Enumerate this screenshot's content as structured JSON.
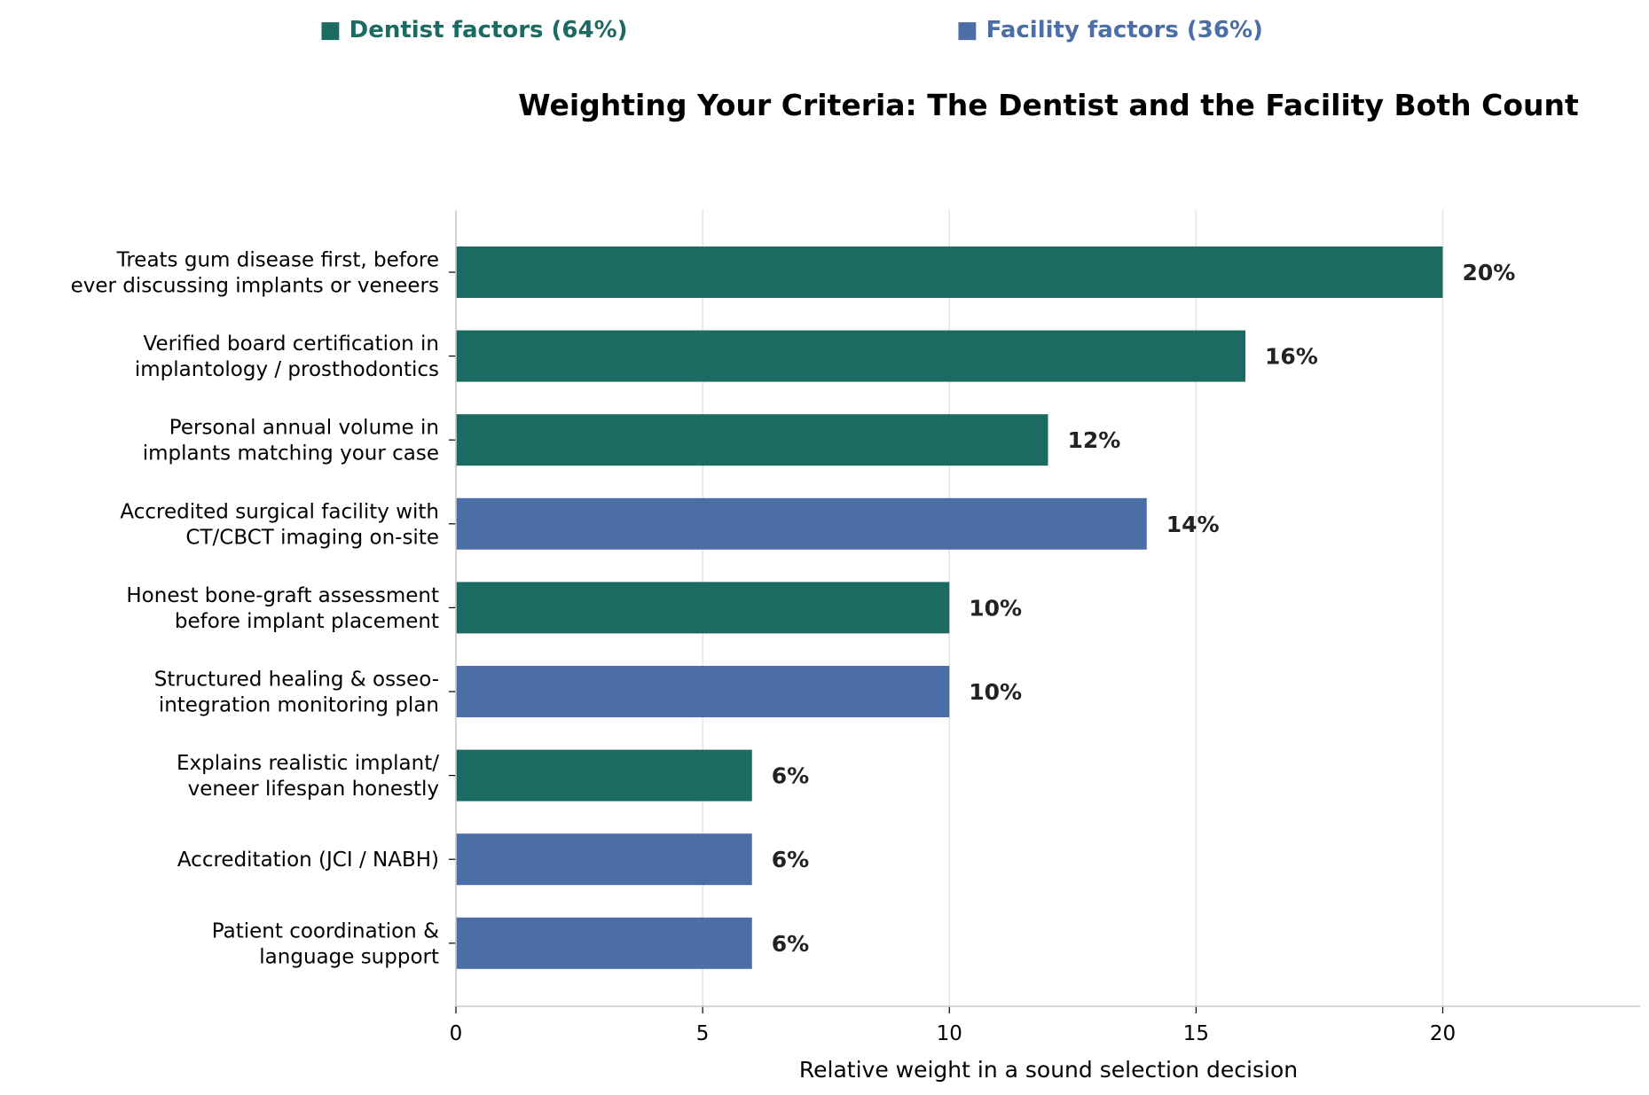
{
  "chart_data": {
    "type": "bar",
    "orientation": "horizontal",
    "title": "Weighting Your Criteria: The Dentist and the Facility Both Count",
    "xlabel": "Relative weight in a sound selection decision",
    "ylabel": "",
    "xlim": [
      0,
      24
    ],
    "xticks": [
      0,
      5,
      10,
      15,
      20
    ],
    "grid": "vertical",
    "legend_position": "top",
    "legend": [
      {
        "label": "■ Dentist factors (64%)",
        "color": "#1c6b62"
      },
      {
        "label": "■ Facility factors (36%)",
        "color": "#4a6ea5"
      }
    ],
    "bars": [
      {
        "label": [
          "Treats gum disease first, before",
          "ever discussing implants or veneers"
        ],
        "value": 20,
        "value_label": "20%",
        "group": 0
      },
      {
        "label": [
          "Verified board certification in",
          "implantology / prosthodontics"
        ],
        "value": 16,
        "value_label": "16%",
        "group": 0
      },
      {
        "label": [
          "Personal annual volume in",
          "implants matching your case"
        ],
        "value": 12,
        "value_label": "12%",
        "group": 0
      },
      {
        "label": [
          "Accredited surgical facility with",
          "CT/CBCT imaging on-site"
        ],
        "value": 14,
        "value_label": "14%",
        "group": 1
      },
      {
        "label": [
          "Honest bone-graft assessment",
          "before implant placement"
        ],
        "value": 10,
        "value_label": "10%",
        "group": 0
      },
      {
        "label": [
          "Structured healing & osseo-",
          "integration monitoring plan"
        ],
        "value": 10,
        "value_label": "10%",
        "group": 1
      },
      {
        "label": [
          "Explains realistic implant/",
          "veneer lifespan honestly"
        ],
        "value": 6,
        "value_label": "6%",
        "group": 0
      },
      {
        "label": [
          "Accreditation (JCI / NABH)"
        ],
        "value": 6,
        "value_label": "6%",
        "group": 1
      },
      {
        "label": [
          "Patient coordination &",
          "language support"
        ],
        "value": 6,
        "value_label": "6%",
        "group": 1
      }
    ]
  }
}
